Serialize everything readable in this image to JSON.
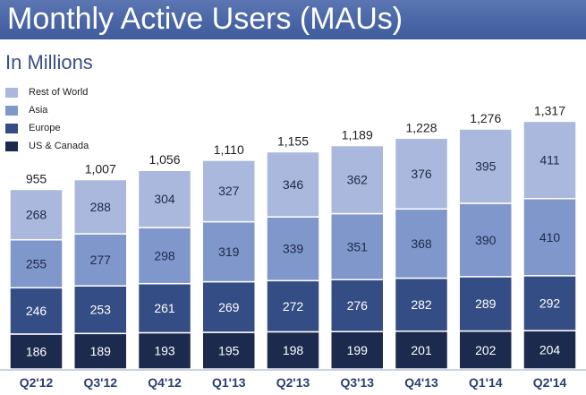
{
  "header": {
    "title": "Monthly Active Users (MAUs)",
    "subtitle": "In Millions"
  },
  "colors": {
    "header_band": "#4a66a6",
    "rest_of_world": "#a9b8dc",
    "asia": "#7f97cb",
    "europe": "#344d84",
    "us_canada": "#1c2a4e",
    "axis_label": "#2b3f73"
  },
  "chart_data": {
    "type": "bar",
    "stacked": true,
    "title": "Monthly Active Users (MAUs)",
    "subtitle": "In Millions",
    "categories": [
      "Q2'12",
      "Q3'12",
      "Q4'12",
      "Q1'13",
      "Q2'13",
      "Q3'13",
      "Q4'13",
      "Q1'14",
      "Q2'14"
    ],
    "totals": [
      "955",
      "1,007",
      "1,056",
      "1,110",
      "1,155",
      "1,189",
      "1,228",
      "1,276",
      "1,317"
    ],
    "series": [
      {
        "name": "US & Canada",
        "color": "#1c2a4e",
        "values": [
          186,
          189,
          193,
          195,
          198,
          199,
          201,
          202,
          204
        ]
      },
      {
        "name": "Europe",
        "color": "#344d84",
        "values": [
          246,
          253,
          261,
          269,
          272,
          276,
          282,
          289,
          292
        ]
      },
      {
        "name": "Asia",
        "color": "#7f97cb",
        "values": [
          255,
          277,
          298,
          319,
          339,
          351,
          368,
          390,
          410
        ]
      },
      {
        "name": "Rest of World",
        "color": "#a9b8dc",
        "values": [
          268,
          288,
          304,
          327,
          346,
          362,
          376,
          395,
          411
        ]
      }
    ],
    "legend": [
      "Rest of World",
      "Asia",
      "Europe",
      "US & Canada"
    ],
    "legend_position": "top-left",
    "ylim": [
      0,
      1400
    ],
    "grid": false
  }
}
